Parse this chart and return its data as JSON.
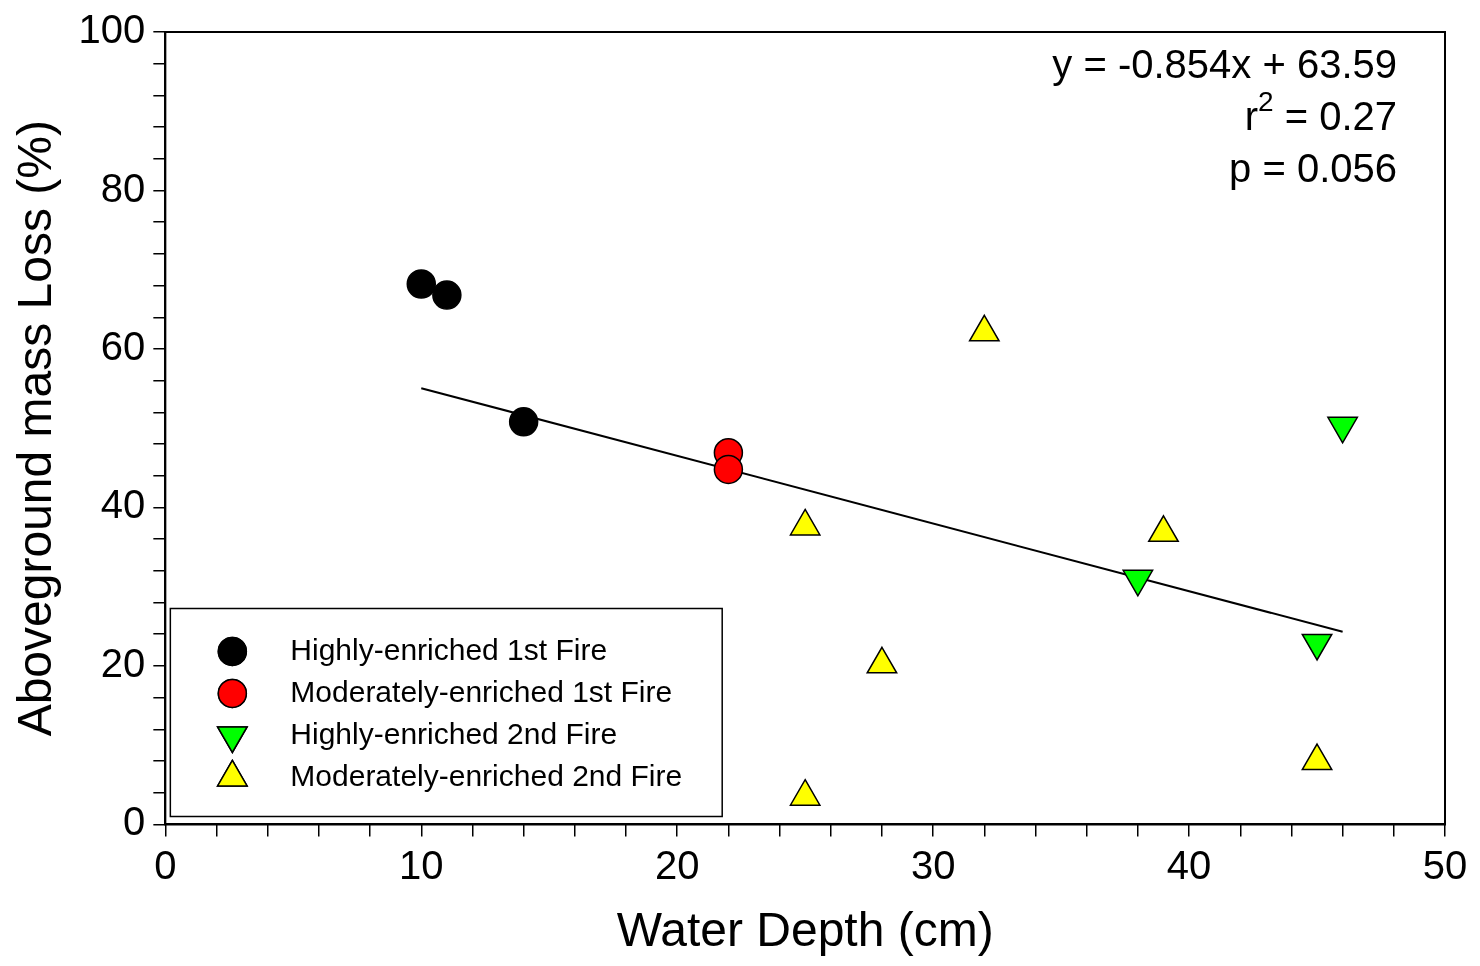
{
  "chart_data": {
    "type": "scatter",
    "xlabel": "Water Depth (cm)",
    "ylabel": "Aboveground mass Loss (%)",
    "xlim": [
      0,
      50
    ],
    "ylim": [
      0,
      100
    ],
    "xticks": [
      0,
      {
        "value": 2,
        "label": null
      },
      {
        "value": 4,
        "label": null
      },
      {
        "value": 6,
        "label": null
      },
      {
        "value": 8,
        "label": null
      },
      10,
      {
        "value": 12,
        "label": null
      },
      {
        "value": 14,
        "label": null
      },
      {
        "value": 16,
        "label": null
      },
      {
        "value": 18,
        "label": null
      },
      20,
      {
        "value": 22,
        "label": null
      },
      {
        "value": 24,
        "label": null
      },
      {
        "value": 26,
        "label": null
      },
      {
        "value": 28,
        "label": null
      },
      30,
      {
        "value": 32,
        "label": null
      },
      {
        "value": 34,
        "label": null
      },
      {
        "value": 36,
        "label": null
      },
      {
        "value": 38,
        "label": null
      },
      40,
      {
        "value": 42,
        "label": null
      },
      {
        "value": 44,
        "label": null
      },
      {
        "value": 46,
        "label": null
      },
      {
        "value": 48,
        "label": null
      },
      50
    ],
    "yticks": [
      0,
      {
        "value": 4,
        "label": null
      },
      {
        "value": 8,
        "label": null
      },
      {
        "value": 12,
        "label": null
      },
      {
        "value": 16,
        "label": null
      },
      20,
      {
        "value": 24,
        "label": null
      },
      {
        "value": 28,
        "label": null
      },
      {
        "value": 32,
        "label": null
      },
      {
        "value": 36,
        "label": null
      },
      40,
      {
        "value": 44,
        "label": null
      },
      {
        "value": 48,
        "label": null
      },
      {
        "value": 52,
        "label": null
      },
      {
        "value": 56,
        "label": null
      },
      60,
      {
        "value": 64,
        "label": null
      },
      {
        "value": 68,
        "label": null
      },
      {
        "value": 72,
        "label": null
      },
      {
        "value": 76,
        "label": null
      },
      80,
      {
        "value": 84,
        "label": null
      },
      {
        "value": 88,
        "label": null
      },
      {
        "value": 92,
        "label": null
      },
      {
        "value": 96,
        "label": null
      },
      100
    ],
    "grid": false,
    "legend": "bottom left",
    "annotations": [
      "y = -0.854x + 63.59",
      "r$^{2}$ = 0.27",
      "p = 0.056"
    ],
    "series": [
      {
        "name": "Highly-enriched 1st Fire",
        "color": "#000000",
        "marker": "circle",
        "x": [
          10,
          11,
          14
        ],
        "values": [
          68.2,
          66.8,
          50.8
        ]
      },
      {
        "name": "Moderately-enriched 1st Fire",
        "color": "#ff0000",
        "marker": "circle",
        "x": [
          22,
          22
        ],
        "values": [
          46.9,
          44.8
        ]
      },
      {
        "name": "Highly-enriched 2nd Fire",
        "color": "#00ff00",
        "marker": "triangle-down",
        "x": [
          38,
          45,
          46
        ],
        "values": [
          31.0,
          22.9,
          50.3
        ]
      },
      {
        "name": "Moderately-enriched 2nd Fire",
        "color": "#ffff00",
        "marker": "triangle",
        "x": [
          25,
          28,
          32,
          39,
          45,
          25
        ],
        "values": [
          37.6,
          20.2,
          62.1,
          36.8,
          8.0,
          3.5
        ]
      },
      {
        "type": "line",
        "color": "#000000",
        "marker": "none",
        "line_style": "solid",
        "x": [
          10,
          46
        ],
        "values": [
          55.05,
          24.31
        ]
      }
    ]
  }
}
